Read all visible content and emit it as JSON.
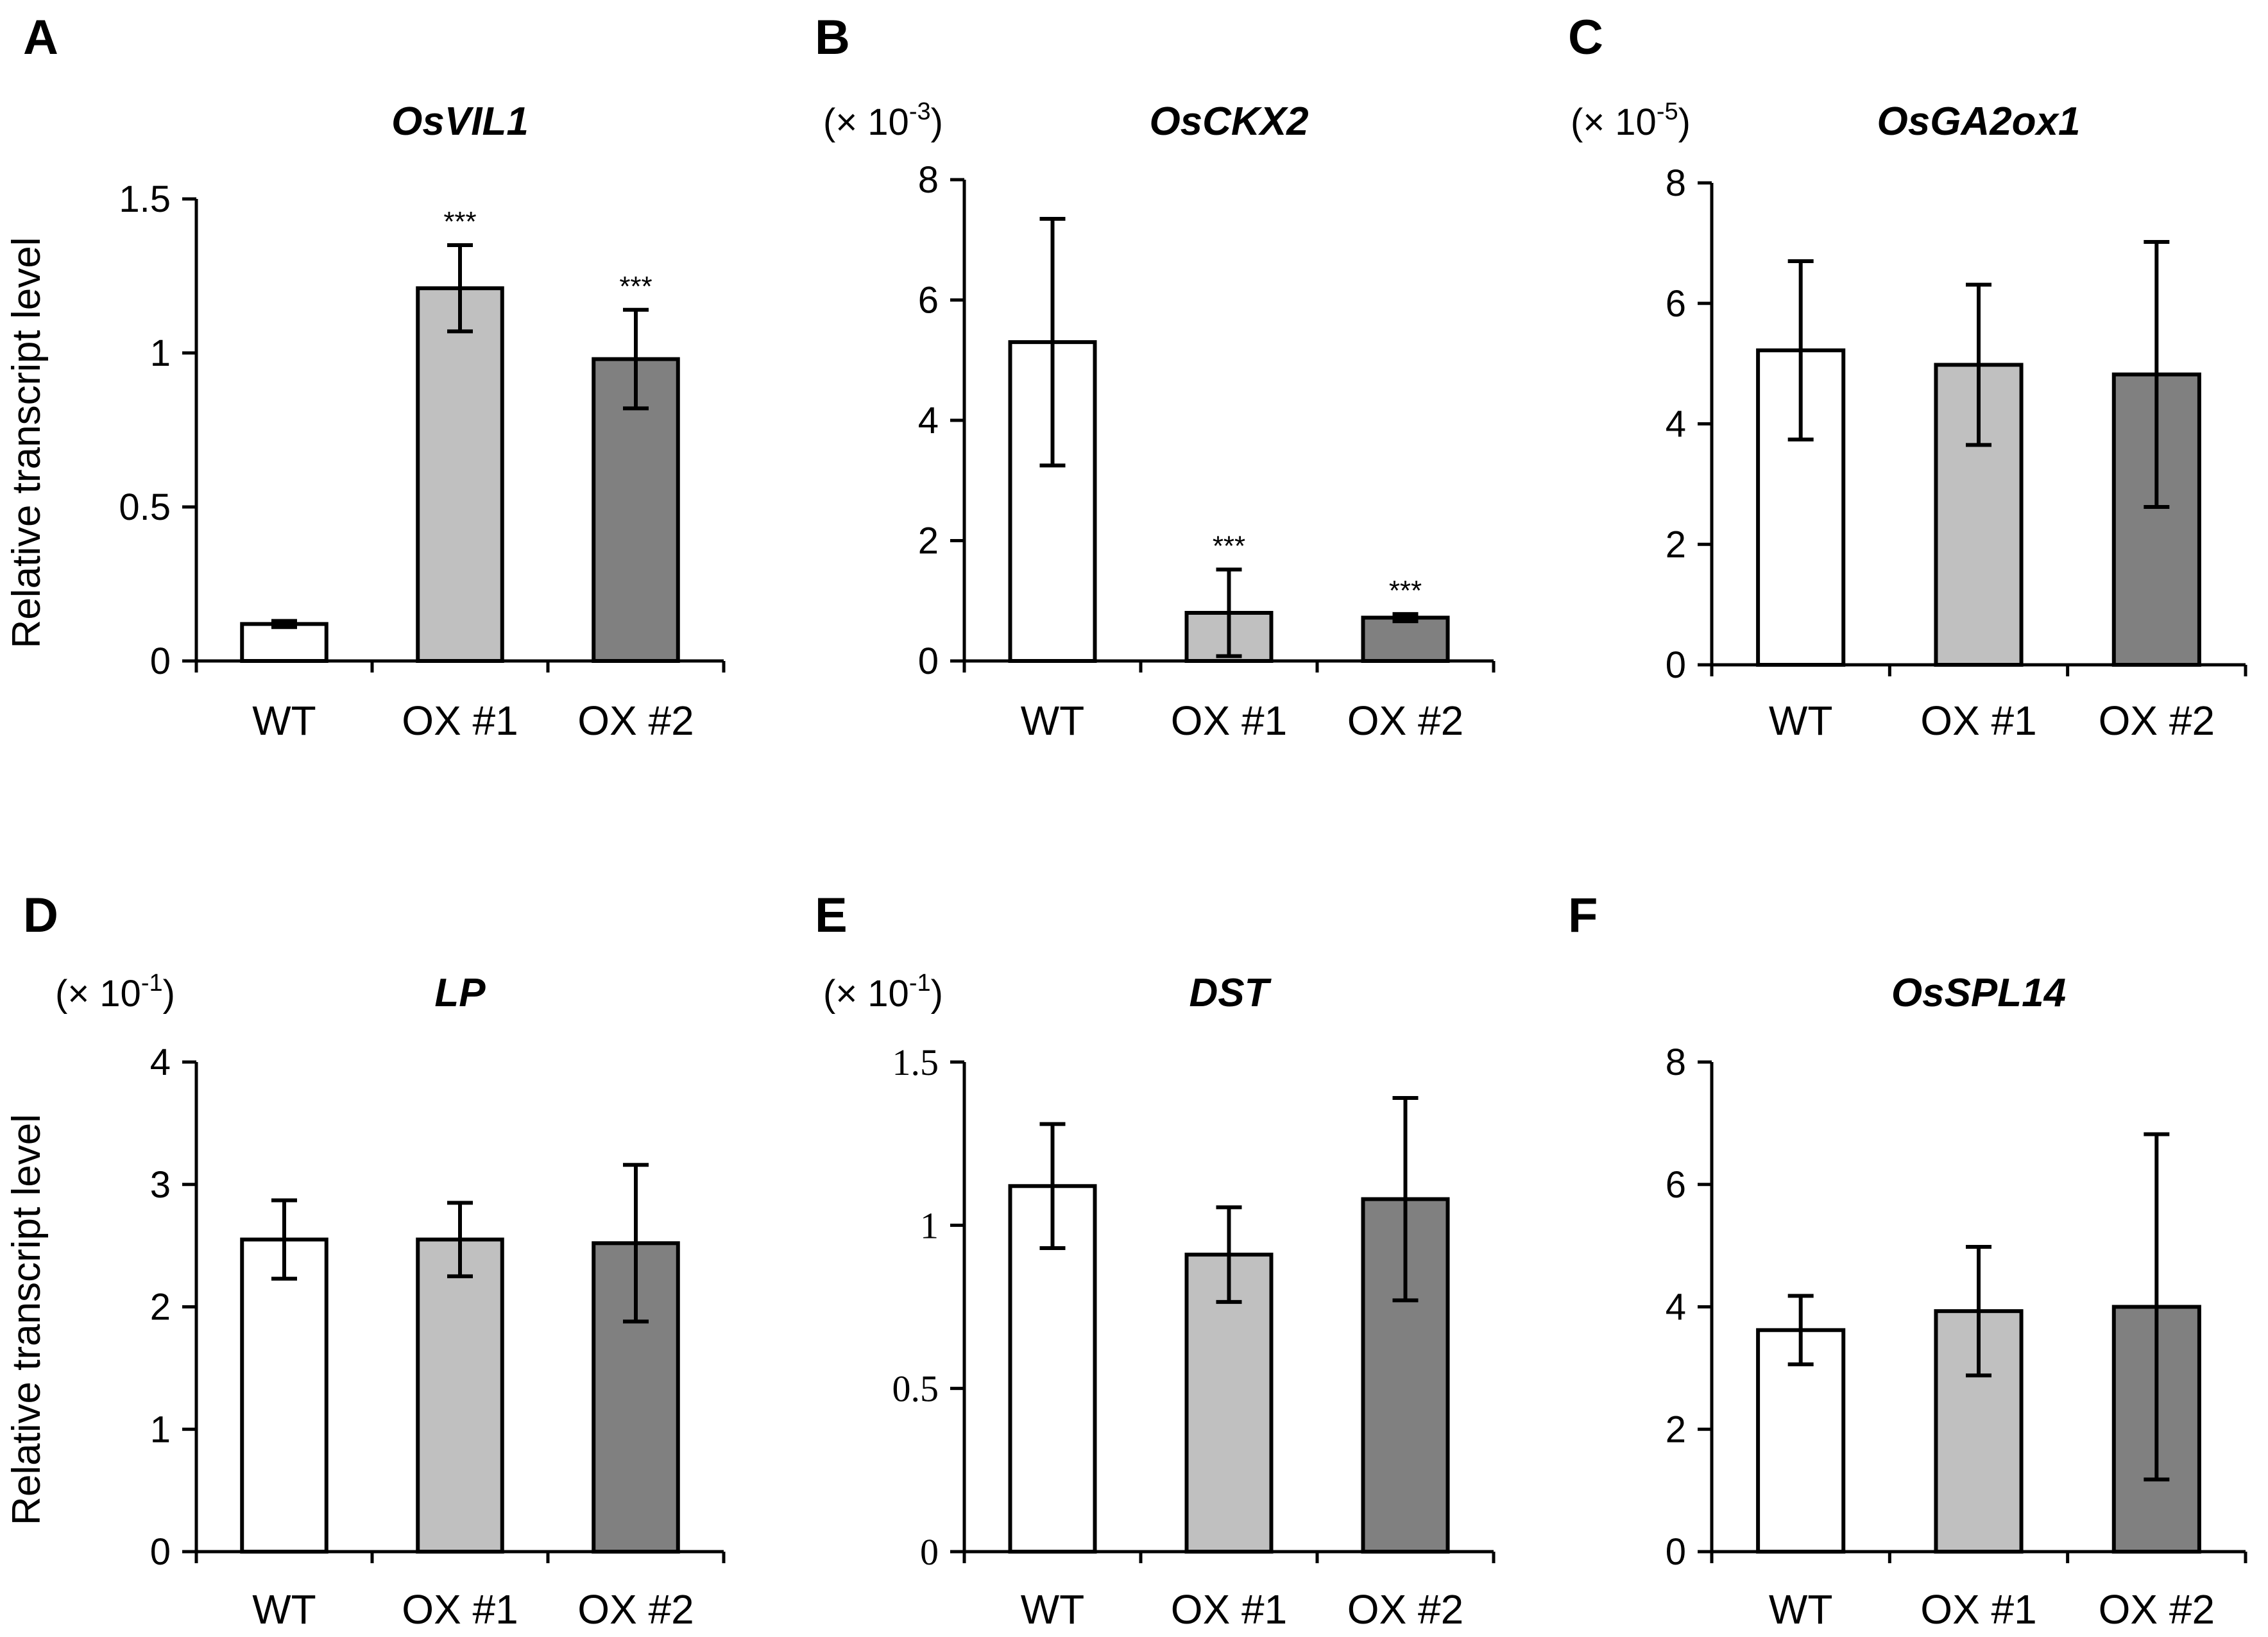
{
  "chart_data": [
    {
      "panel": "A",
      "type": "bar",
      "title": "OsVIL1",
      "scale": null,
      "ylabel": "Relative transcript level",
      "categories": [
        "WT",
        "OX #1",
        "OX #2"
      ],
      "values": [
        0.12,
        1.21,
        0.98
      ],
      "errors": [
        0.01,
        0.14,
        0.16
      ],
      "significance": [
        "",
        "***",
        "***"
      ],
      "ylim": [
        0,
        1.5
      ],
      "yticks": [
        "0",
        "0.5",
        "1",
        "1.5"
      ],
      "tick_font": "sans",
      "colors": [
        "#ffffff",
        "#c0c0c0",
        "#808080"
      ]
    },
    {
      "panel": "B",
      "type": "bar",
      "title": "OsCKX2",
      "scale": {
        "prefix": "(× 10",
        "exp": "-3",
        "suffix": ")"
      },
      "ylabel": "",
      "categories": [
        "WT",
        "OX #1",
        "OX #2"
      ],
      "values": [
        5.3,
        0.8,
        0.72
      ],
      "errors": [
        2.05,
        0.72,
        0.06
      ],
      "significance": [
        "",
        "***",
        "***"
      ],
      "ylim": [
        0,
        8
      ],
      "yticks": [
        "0",
        "2",
        "4",
        "6",
        "8"
      ],
      "tick_font": "sans",
      "colors": [
        "#ffffff",
        "#c0c0c0",
        "#808080"
      ]
    },
    {
      "panel": "C",
      "type": "bar",
      "title": "OsGA2ox1",
      "scale": {
        "prefix": "(× 10",
        "exp": "-5",
        "suffix": ")"
      },
      "ylabel": "",
      "categories": [
        "WT",
        "OX #1",
        "OX #2"
      ],
      "values": [
        5.22,
        4.98,
        4.82
      ],
      "errors": [
        1.48,
        1.33,
        2.2
      ],
      "significance": [
        "",
        "",
        ""
      ],
      "ylim": [
        0,
        8
      ],
      "yticks": [
        "0",
        "2",
        "4",
        "6",
        "8"
      ],
      "tick_font": "sans",
      "colors": [
        "#ffffff",
        "#c0c0c0",
        "#808080"
      ]
    },
    {
      "panel": "D",
      "type": "bar",
      "title": "LP",
      "scale": {
        "prefix": "(× 10",
        "exp": "-1",
        "suffix": ")"
      },
      "ylabel": "Relative transcript level",
      "categories": [
        "WT",
        "OX #1",
        "OX #2"
      ],
      "values": [
        2.55,
        2.55,
        2.52
      ],
      "errors": [
        0.32,
        0.3,
        0.64
      ],
      "significance": [
        "",
        "",
        ""
      ],
      "ylim": [
        0,
        4
      ],
      "yticks": [
        "0",
        "1",
        "2",
        "3",
        "4"
      ],
      "tick_font": "sans",
      "colors": [
        "#ffffff",
        "#c0c0c0",
        "#808080"
      ]
    },
    {
      "panel": "E",
      "type": "bar",
      "title": "DST",
      "scale": {
        "prefix": "(× 10",
        "exp": "-1",
        "suffix": ")"
      },
      "ylabel": "",
      "categories": [
        "WT",
        "OX #1",
        "OX #2"
      ],
      "values": [
        1.12,
        0.91,
        1.08
      ],
      "errors": [
        0.19,
        0.145,
        0.31
      ],
      "significance": [
        "",
        "",
        ""
      ],
      "ylim": [
        0,
        1.5
      ],
      "yticks": [
        "0",
        "0.5",
        "1",
        "1.5"
      ],
      "tick_font": "serif",
      "colors": [
        "#ffffff",
        "#c0c0c0",
        "#808080"
      ]
    },
    {
      "panel": "F",
      "type": "bar",
      "title": "OsSPL14",
      "scale": null,
      "ylabel": "",
      "categories": [
        "WT",
        "OX #1",
        "OX #2"
      ],
      "values": [
        3.62,
        3.93,
        4.0
      ],
      "errors": [
        0.56,
        1.05,
        2.82
      ],
      "significance": [
        "",
        "",
        ""
      ],
      "ylim": [
        0,
        8
      ],
      "yticks": [
        "0",
        "2",
        "4",
        "6",
        "8"
      ],
      "tick_font": "sans",
      "colors": [
        "#ffffff",
        "#c0c0c0",
        "#808080"
      ]
    }
  ]
}
